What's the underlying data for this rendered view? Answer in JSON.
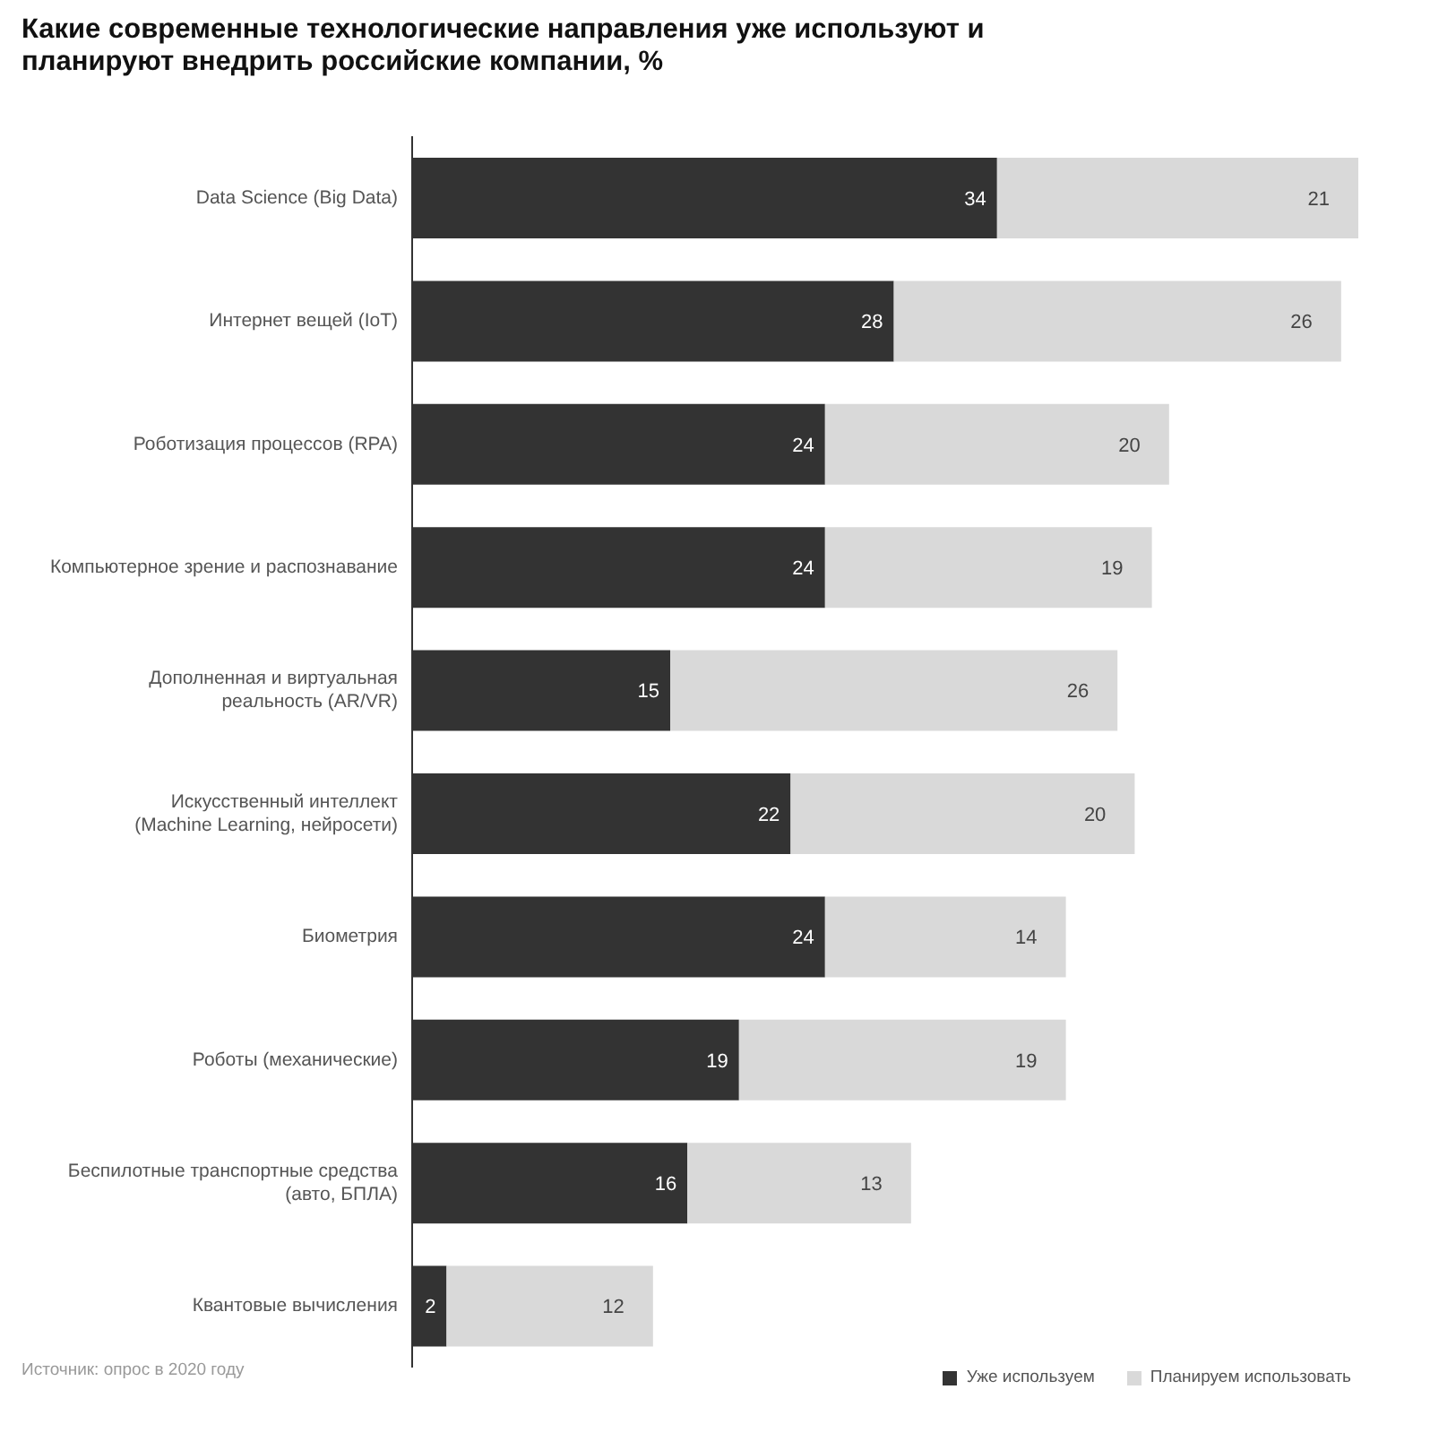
{
  "chart_data": {
    "type": "bar",
    "orientation": "horizontal",
    "stacked": true,
    "data_labels": true,
    "legend": "bottom right",
    "title": "Какие современные технологические направления уже используют и планируют внедрить российские компании, %",
    "categories": [
      "Data Science (Big Data)",
      "Интернет вещей (IoT)",
      "Роботизация процессов (RPA)",
      "Компьютерное зрение и распознавание",
      "Дополненная и виртуальная реальность (AR/VR)",
      "Искусственный интеллект (Machine Learning, нейросети)",
      "Биометрия",
      "Роботы (механические)",
      "Беспилотные транспортные средства (авто, БПЛА)",
      "Квантовые вычисления"
    ],
    "series": [
      {
        "name": "Уже используем",
        "color": "#333333",
        "values": [
          34,
          28,
          24,
          24,
          15,
          22,
          24,
          19,
          16,
          2
        ]
      },
      {
        "name": "Планируем использовать",
        "color": "#d9d9d9",
        "values": [
          21,
          26,
          20,
          19,
          26,
          20,
          14,
          19,
          13,
          12
        ]
      }
    ],
    "annotations": [
      "Источник: опрос в 2020 году"
    ]
  }
}
